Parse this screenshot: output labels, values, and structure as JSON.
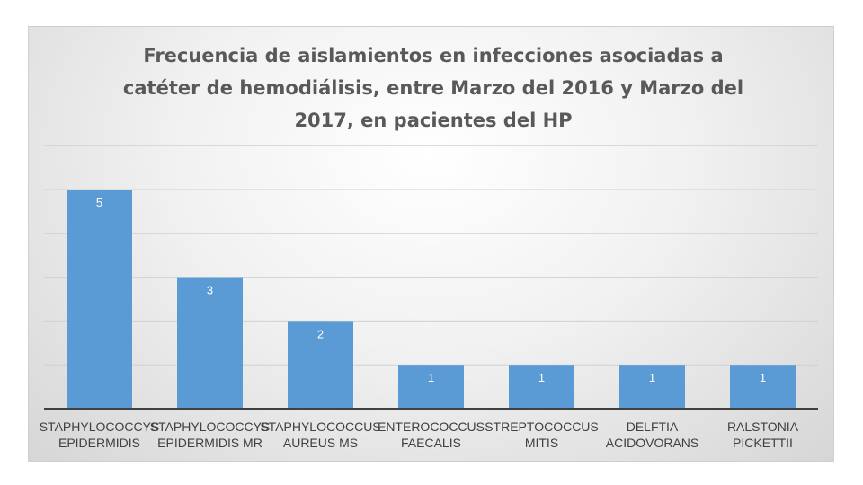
{
  "chart_data": {
    "type": "bar",
    "title": "Frecuencia de aislamientos en infecciones asociadas a catéter de hemodiálisis, entre Marzo del 2016 y Marzo del 2017, en pacientes del HP",
    "categories": [
      [
        "STAPHYLOCOCCYS",
        "EPIDERMIDIS"
      ],
      [
        "STAPHYLOCOCCYS",
        "EPIDERMIDIS MR"
      ],
      [
        "STAPHYLOCOCCUS",
        "AUREUS MS"
      ],
      [
        "ENTEROCOCCUS",
        "FAECALIS"
      ],
      [
        "STREPTOCOCCUS",
        "MITIS"
      ],
      [
        "DELFTIA",
        "ACIDOVORANS"
      ],
      [
        "RALSTONIA",
        "PICKETTII"
      ]
    ],
    "values": [
      5,
      3,
      2,
      1,
      1,
      1,
      1
    ],
    "data_labels": [
      "5",
      "3",
      "2",
      "1",
      "1",
      "1",
      "1"
    ],
    "ylim": [
      0,
      6
    ],
    "grid": true,
    "bar_color": "#5b9bd5"
  }
}
